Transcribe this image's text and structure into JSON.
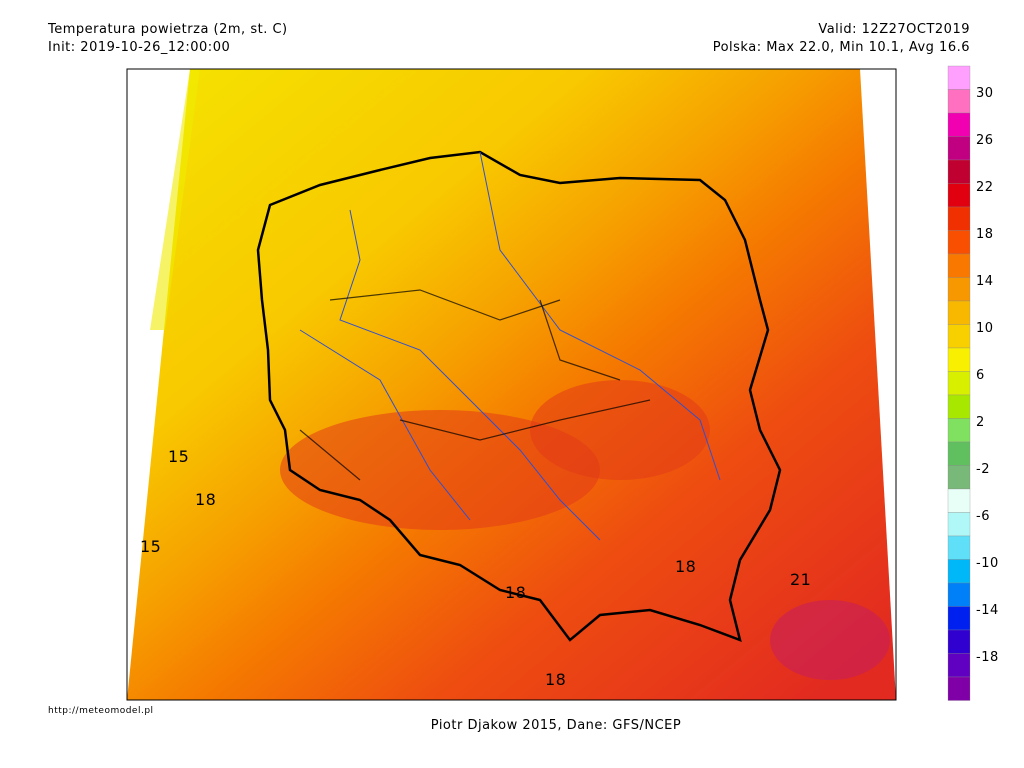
{
  "header": {
    "title": "Temperatura powietrza (2m, st. C)",
    "init": "Init: 2019-10-26_12:00:00",
    "valid": "Valid: 12Z27OCT2019",
    "stats": "Polska: Max 22.0, Min 10.1, Avg 16.6"
  },
  "colorbar": {
    "labels": [
      30,
      26,
      22,
      18,
      14,
      10,
      6,
      2,
      -2,
      -6,
      -10,
      -14,
      -18
    ]
  },
  "map_labels": [
    "15",
    "18",
    "15",
    "18",
    "21",
    "18",
    "18"
  ],
  "footer": {
    "url": "http://meteomodel.pl",
    "credit": "Piotr Djakow 2015, Dane: GFS/NCEP"
  }
}
